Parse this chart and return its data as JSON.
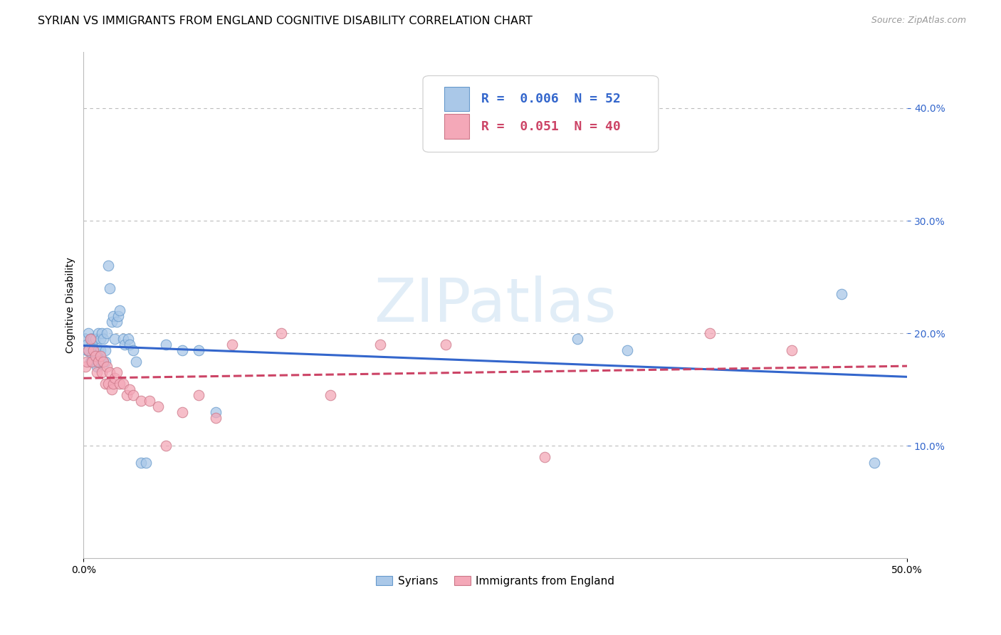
{
  "title": "SYRIAN VS IMMIGRANTS FROM ENGLAND COGNITIVE DISABILITY CORRELATION CHART",
  "source": "Source: ZipAtlas.com",
  "ylabel": "Cognitive Disability",
  "watermark": "ZIPatlas",
  "xlim": [
    0.0,
    0.5
  ],
  "ylim": [
    0.0,
    0.45
  ],
  "xticks": [
    0.0,
    0.5
  ],
  "yticks": [
    0.1,
    0.2,
    0.3,
    0.4
  ],
  "legend_blue_R": "0.006",
  "legend_blue_N": "52",
  "legend_pink_R": "0.051",
  "legend_pink_N": "40",
  "blue_color": "#aac8e8",
  "pink_color": "#f4a8b8",
  "trendline_blue_color": "#3366cc",
  "trendline_pink_color": "#cc4466",
  "blue_edge": "#6699cc",
  "pink_edge": "#cc7788",
  "syrians_x": [
    0.001,
    0.002,
    0.002,
    0.003,
    0.003,
    0.004,
    0.004,
    0.005,
    0.005,
    0.005,
    0.006,
    0.006,
    0.007,
    0.007,
    0.008,
    0.008,
    0.009,
    0.009,
    0.009,
    0.01,
    0.01,
    0.011,
    0.011,
    0.012,
    0.012,
    0.013,
    0.013,
    0.014,
    0.015,
    0.016,
    0.017,
    0.018,
    0.019,
    0.02,
    0.021,
    0.022,
    0.024,
    0.025,
    0.027,
    0.028,
    0.03,
    0.032,
    0.035,
    0.038,
    0.05,
    0.06,
    0.07,
    0.08,
    0.3,
    0.33,
    0.46,
    0.48
  ],
  "syrians_y": [
    0.195,
    0.185,
    0.19,
    0.2,
    0.185,
    0.195,
    0.175,
    0.195,
    0.19,
    0.18,
    0.195,
    0.175,
    0.195,
    0.185,
    0.18,
    0.17,
    0.185,
    0.175,
    0.2,
    0.195,
    0.185,
    0.2,
    0.175,
    0.195,
    0.175,
    0.185,
    0.175,
    0.2,
    0.26,
    0.24,
    0.21,
    0.215,
    0.195,
    0.21,
    0.215,
    0.22,
    0.195,
    0.19,
    0.195,
    0.19,
    0.185,
    0.175,
    0.085,
    0.085,
    0.19,
    0.185,
    0.185,
    0.13,
    0.195,
    0.185,
    0.235,
    0.085
  ],
  "england_x": [
    0.001,
    0.002,
    0.003,
    0.004,
    0.005,
    0.006,
    0.007,
    0.008,
    0.009,
    0.01,
    0.011,
    0.012,
    0.013,
    0.014,
    0.015,
    0.016,
    0.017,
    0.018,
    0.019,
    0.02,
    0.022,
    0.024,
    0.026,
    0.028,
    0.03,
    0.035,
    0.04,
    0.045,
    0.05,
    0.06,
    0.07,
    0.08,
    0.09,
    0.12,
    0.15,
    0.18,
    0.22,
    0.28,
    0.38,
    0.43
  ],
  "england_y": [
    0.17,
    0.175,
    0.185,
    0.195,
    0.175,
    0.185,
    0.18,
    0.165,
    0.175,
    0.18,
    0.165,
    0.175,
    0.155,
    0.17,
    0.155,
    0.165,
    0.15,
    0.155,
    0.16,
    0.165,
    0.155,
    0.155,
    0.145,
    0.15,
    0.145,
    0.14,
    0.14,
    0.135,
    0.1,
    0.13,
    0.145,
    0.125,
    0.19,
    0.2,
    0.145,
    0.19,
    0.19,
    0.09,
    0.2,
    0.185
  ],
  "background_color": "#ffffff",
  "grid_color": "#bbbbbb",
  "title_fontsize": 11.5,
  "axis_label_fontsize": 10,
  "tick_fontsize": 10,
  "source_fontsize": 9,
  "marker_size": 110
}
